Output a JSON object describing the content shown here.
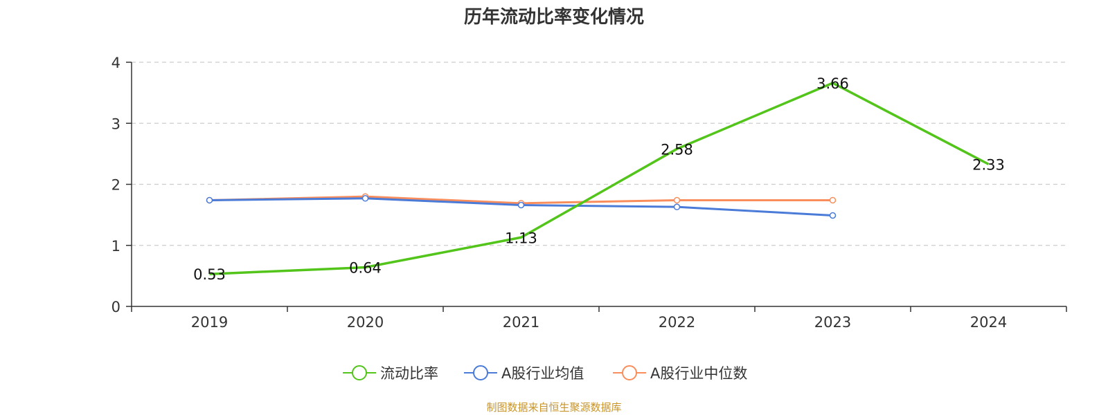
{
  "chart_data": {
    "type": "line",
    "title": "历年流动比率变化情况",
    "categories": [
      "2019",
      "2020",
      "2021",
      "2022",
      "2023",
      "2024"
    ],
    "ylim": [
      0,
      4
    ],
    "yticks": [
      0,
      1,
      2,
      3,
      4
    ],
    "grid": true,
    "legend_position": "bottom-center",
    "series": [
      {
        "name": "流动比率",
        "color": "#52c41a",
        "values": [
          0.53,
          0.64,
          1.13,
          2.58,
          3.66,
          2.33
        ],
        "labels": [
          "0.53",
          "0.64",
          "1.13",
          "2.58",
          "3.66",
          "2.33"
        ]
      },
      {
        "name": "A股行业均值",
        "color": "#4a7bd8",
        "values": [
          1.74,
          1.77,
          1.66,
          1.63,
          1.49,
          null
        ]
      },
      {
        "name": "A股行业中位数",
        "color": "#f98d5c",
        "values": [
          1.74,
          1.8,
          1.69,
          1.74,
          1.74,
          null
        ]
      }
    ]
  },
  "footer": {
    "source": "制图数据来自恒生聚源数据库"
  }
}
